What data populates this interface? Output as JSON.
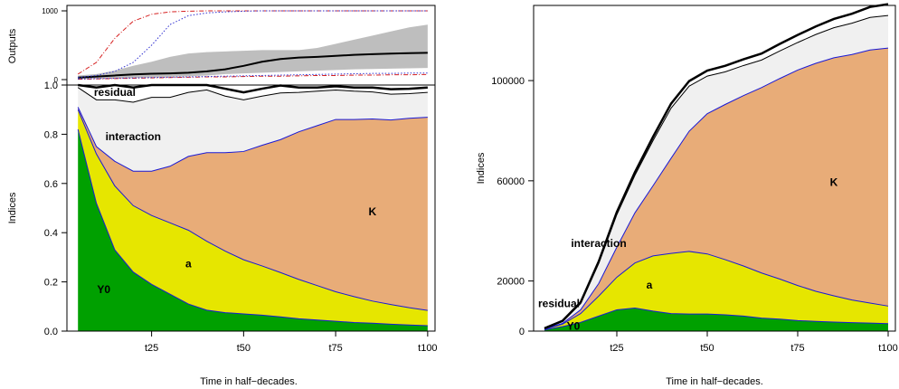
{
  "chart_data": [
    {
      "type": "line",
      "panel": "outputs",
      "ylabel": "Outputs",
      "ylim": [
        0,
        1000
      ],
      "yticks": [
        "0",
        "1000"
      ],
      "x": [
        5,
        10,
        15,
        20,
        25,
        30,
        35,
        40,
        45,
        50,
        55,
        60,
        65,
        70,
        75,
        80,
        85,
        90,
        95,
        100
      ],
      "series": [
        {
          "name": "mean",
          "color": "#000000",
          "style": "solid",
          "values": [
            30,
            45,
            60,
            75,
            85,
            90,
            100,
            120,
            150,
            200,
            260,
            300,
            320,
            330,
            345,
            360,
            370,
            378,
            385,
            390
          ]
        },
        {
          "name": "band_upper",
          "color": "#bebebe",
          "style": "area",
          "values": [
            60,
            80,
            130,
            200,
            260,
            330,
            380,
            400,
            410,
            420,
            430,
            430,
            430,
            460,
            520,
            580,
            640,
            700,
            760,
            800
          ]
        },
        {
          "name": "band_lower",
          "color": "#bebebe",
          "style": "area",
          "values": [
            10,
            15,
            20,
            25,
            30,
            40,
            50,
            60,
            80,
            90,
            100,
            110,
            120,
            130,
            140,
            150,
            155,
            160,
            165,
            170
          ]
        },
        {
          "name": "red_dashdot",
          "color": "#d62020",
          "style": "dashdot",
          "values": [
            80,
            250,
            600,
            850,
            950,
            985,
            995,
            1000,
            1000,
            1000,
            1000,
            1000,
            1000,
            1000,
            1000,
            1000,
            1000,
            1000,
            1000,
            1000
          ]
        },
        {
          "name": "blue_dotted",
          "color": "#3030d0",
          "style": "dotted",
          "values": [
            30,
            60,
            120,
            250,
            500,
            800,
            930,
            970,
            985,
            995,
            1000,
            1000,
            1000,
            1000,
            1000,
            1000,
            1000,
            1000,
            1000,
            1000
          ]
        },
        {
          "name": "red_low",
          "color": "#d62020",
          "style": "dashdot",
          "values": [
            5,
            10,
            15,
            20,
            25,
            30,
            35,
            40,
            40,
            45,
            50,
            50,
            55,
            60,
            60,
            65,
            65,
            70,
            70,
            75
          ]
        },
        {
          "name": "blue_low",
          "color": "#3030d0",
          "style": "dotted",
          "values": [
            10,
            15,
            20,
            25,
            30,
            35,
            40,
            45,
            50,
            55,
            60,
            65,
            70,
            75,
            80,
            85,
            90,
            90,
            95,
            95
          ]
        }
      ]
    },
    {
      "type": "area",
      "panel": "normalized",
      "stacked": true,
      "xlabel": "Time in half−decades.",
      "ylabel": "Indices",
      "ylim": [
        0,
        1.0
      ],
      "yticks": [
        "0.0",
        "0.2",
        "0.4",
        "0.6",
        "0.8",
        "1.0"
      ],
      "xticks": [
        "t25",
        "t50",
        "t75",
        "t100"
      ],
      "x": [
        5,
        10,
        15,
        20,
        25,
        30,
        35,
        40,
        45,
        50,
        55,
        60,
        65,
        70,
        75,
        80,
        85,
        90,
        95,
        100
      ],
      "series": [
        {
          "name": "Y0",
          "color": "#00a000",
          "values": [
            0.82,
            0.52,
            0.33,
            0.24,
            0.19,
            0.15,
            0.11,
            0.085,
            0.075,
            0.07,
            0.065,
            0.058,
            0.05,
            0.045,
            0.04,
            0.035,
            0.032,
            0.028,
            0.025,
            0.022
          ]
        },
        {
          "name": "a",
          "color": "#e6e600",
          "values": [
            0.08,
            0.2,
            0.26,
            0.27,
            0.28,
            0.29,
            0.3,
            0.28,
            0.25,
            0.22,
            0.2,
            0.18,
            0.16,
            0.14,
            0.12,
            0.105,
            0.09,
            0.08,
            0.07,
            0.062
          ]
        },
        {
          "name": "K",
          "color": "#e8ac78",
          "values": [
            0.01,
            0.03,
            0.1,
            0.14,
            0.18,
            0.23,
            0.3,
            0.36,
            0.4,
            0.44,
            0.49,
            0.54,
            0.6,
            0.65,
            0.7,
            0.72,
            0.74,
            0.75,
            0.77,
            0.785
          ]
        },
        {
          "name": "interaction",
          "color": "#f0f0f0",
          "values": [
            0.08,
            0.19,
            0.25,
            0.28,
            0.3,
            0.28,
            0.26,
            0.255,
            0.23,
            0.21,
            0.2,
            0.19,
            0.16,
            0.14,
            0.12,
            0.115,
            0.11,
            0.105,
            0.1,
            0.101
          ]
        },
        {
          "name": "residual",
          "color": "#ffffff",
          "values": [
            0.01,
            0.05,
            0.06,
            0.06,
            0.05,
            0.05,
            0.03,
            0.02,
            0.03,
            0.03,
            0.03,
            0.03,
            0.02,
            0.015,
            0.015,
            0.015,
            0.018,
            0.02,
            0.02,
            0.02
          ]
        }
      ],
      "labels": [
        "residual",
        "interaction",
        "K",
        "a",
        "Y0"
      ]
    },
    {
      "type": "area",
      "panel": "absolute",
      "stacked": true,
      "xlabel": "Time in half−decades.",
      "ylabel": "Indices",
      "ylim": [
        0,
        130000
      ],
      "yticks": [
        "0",
        "20000",
        "60000",
        "100000"
      ],
      "xticks": [
        "t25",
        "t50",
        "t75",
        "t100"
      ],
      "x": [
        5,
        10,
        15,
        20,
        25,
        30,
        35,
        40,
        45,
        50,
        55,
        60,
        65,
        70,
        75,
        80,
        85,
        90,
        95,
        100
      ],
      "series": [
        {
          "name": "Y0",
          "color": "#00a000",
          "values": [
            500,
            1800,
            3500,
            6000,
            8500,
            9200,
            8000,
            7000,
            6800,
            6800,
            6500,
            6000,
            5200,
            4800,
            4200,
            3900,
            3600,
            3400,
            3200,
            3000
          ]
        },
        {
          "name": "a",
          "color": "#e6e600",
          "values": [
            200,
            1000,
            3500,
            8000,
            13000,
            18000,
            22000,
            24000,
            25000,
            24000,
            22000,
            20000,
            18000,
            16000,
            14000,
            12000,
            10500,
            9000,
            8000,
            7000
          ]
        },
        {
          "name": "K",
          "color": "#e8ac78",
          "values": [
            100,
            300,
            1500,
            5000,
            12000,
            20000,
            28000,
            38000,
            48000,
            56000,
            62000,
            68000,
            74000,
            80000,
            86000,
            91000,
            95000,
            98000,
            101000,
            103000
          ]
        },
        {
          "name": "interaction",
          "color": "#f0f0f0",
          "values": [
            200,
            700,
            2500,
            8000,
            13000,
            15000,
            18000,
            20000,
            18000,
            15000,
            13000,
            12000,
            11000,
            11000,
            11000,
            11500,
            12000,
            12500,
            13000,
            13000
          ]
        },
        {
          "name": "residual",
          "color": "#ffffff",
          "values": [
            100,
            300,
            500,
            800,
            1000,
            1200,
            1500,
            1800,
            2000,
            2200,
            2400,
            2500,
            2600,
            2800,
            3000,
            3200,
            3500,
            3800,
            4200,
            4500
          ]
        }
      ],
      "labels": [
        "residual",
        "interaction",
        "K",
        "a",
        "Y0"
      ]
    }
  ]
}
